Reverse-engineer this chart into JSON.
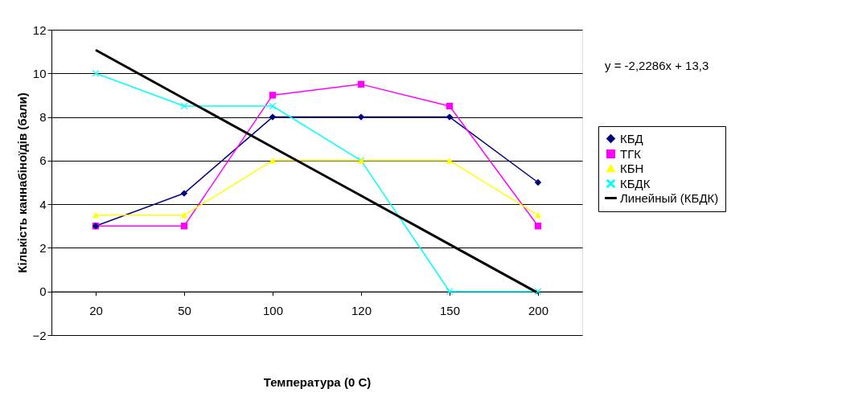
{
  "chart_data": {
    "type": "line",
    "xlabel": "Температура (0 C)",
    "ylabel": "Кількість каннабіноїдів (бали)",
    "categories": [
      "20",
      "50",
      "100",
      "120",
      "150",
      "200"
    ],
    "series": [
      {
        "name": "КБД",
        "color": "#000080",
        "marker": "diamond",
        "values": [
          3,
          4.5,
          8,
          8,
          8,
          5
        ]
      },
      {
        "name": "ТГК",
        "color": "#ff00ff",
        "marker": "square",
        "values": [
          3,
          3,
          9,
          9.5,
          8.5,
          3
        ]
      },
      {
        "name": "КБН",
        "color": "#ffff00",
        "marker": "triangle",
        "values": [
          3.5,
          3.5,
          6,
          6,
          6,
          3.5
        ]
      },
      {
        "name": "КБДК",
        "color": "#00ffff",
        "marker": "cross",
        "values": [
          10,
          8.5,
          8.5,
          6,
          0,
          0
        ]
      },
      {
        "name": "Линейный (КБДК)",
        "color": "#000000",
        "marker": "none",
        "values": [
          11.07,
          8.84,
          6.61,
          4.39,
          2.16,
          -0.07
        ]
      }
    ],
    "annotations": [
      "y = -2,2286x + 13,3"
    ],
    "ylim": [
      -2,
      12
    ],
    "yticks": [
      -2,
      0,
      2,
      4,
      6,
      8,
      10,
      12
    ],
    "grid": "y",
    "legend": "right"
  }
}
